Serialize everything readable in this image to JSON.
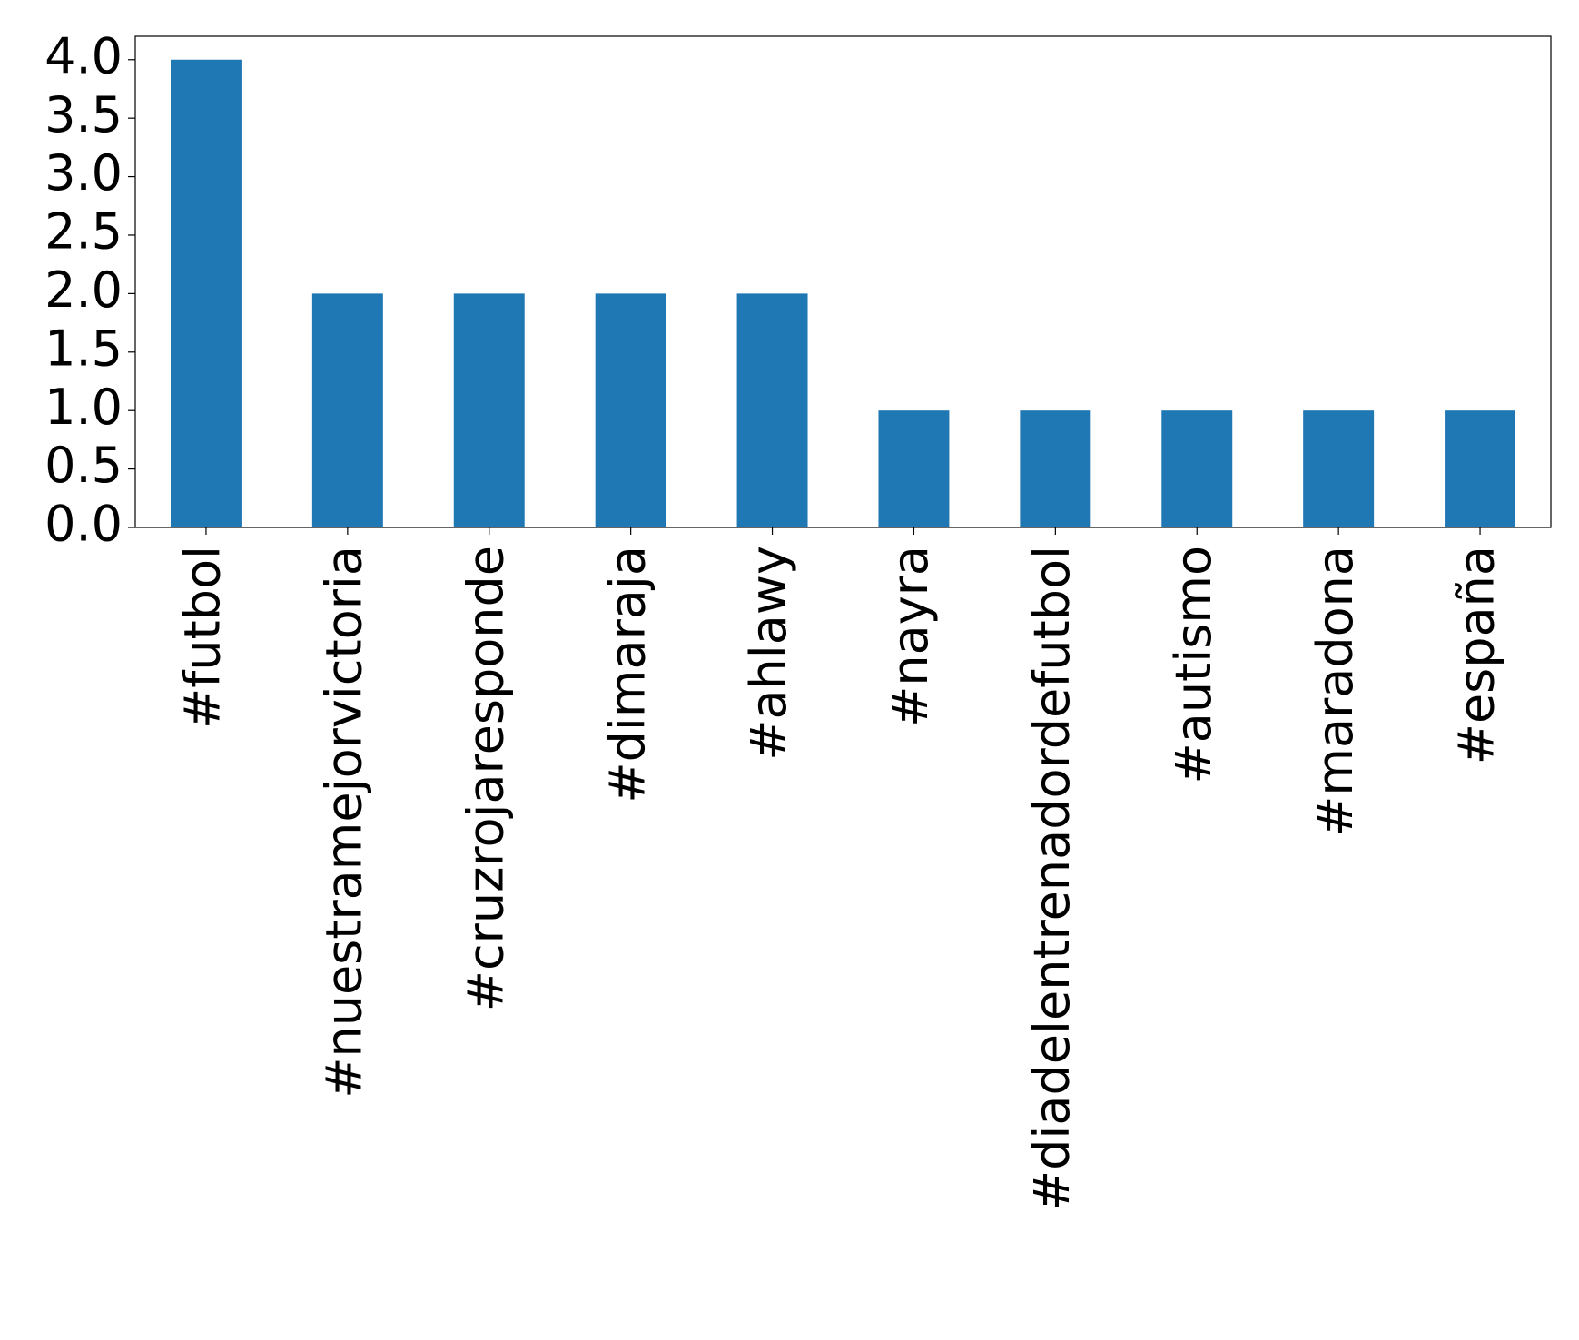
{
  "chart_data": {
    "type": "bar",
    "categories": [
      "#futbol",
      "#nuestramejorvictoria",
      "#cruzrojaresponde",
      "#dimaraja",
      "#ahlawy",
      "#nayra",
      "#diadelentrenadordefutbol",
      "#autismo",
      "#maradona",
      "#españa"
    ],
    "values": [
      4,
      2,
      2,
      2,
      2,
      1,
      1,
      1,
      1,
      1
    ],
    "color": "#1f77b4",
    "ylim": [
      0,
      4.2
    ],
    "yticks": [
      {
        "value": 0,
        "label": "0.0"
      },
      {
        "value": 0.5,
        "label": "0.5"
      },
      {
        "value": 1,
        "label": "1.0"
      },
      {
        "value": 1.5,
        "label": "1.5"
      },
      {
        "value": 2,
        "label": "2.0"
      },
      {
        "value": 2.5,
        "label": "2.5"
      },
      {
        "value": 3,
        "label": "3.0"
      },
      {
        "value": 3.5,
        "label": "3.5"
      },
      {
        "value": 4,
        "label": "4.0"
      }
    ],
    "grid": false
  }
}
